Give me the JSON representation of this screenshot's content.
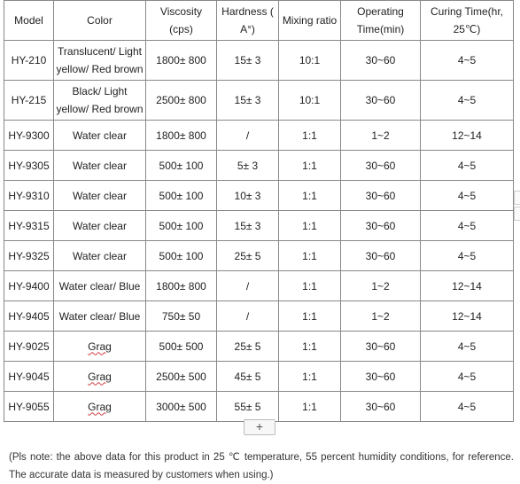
{
  "headers": {
    "model": "Model",
    "color": "Color",
    "viscosity": "Viscosity (cps)",
    "hardness": "Hardness ( A°)",
    "mixing": "Mixing ratio",
    "operating": "Operating Time(min)",
    "curing": "Curing Time(hr, 25℃)"
  },
  "rows": [
    {
      "model": "HY-210",
      "color": "Translucent/ Light yellow/ Red brown",
      "viscosity": "1800± 800",
      "hardness": "15± 3",
      "mixing": "10:1",
      "operating": "30~60",
      "curing": "4~5"
    },
    {
      "model": "HY-215",
      "color": "Black/ Light yellow/ Red brown",
      "viscosity": "2500± 800",
      "hardness": "15± 3",
      "mixing": "10:1",
      "operating": "30~60",
      "curing": "4~5"
    },
    {
      "model": "HY-9300",
      "color": "Water clear",
      "viscosity": "1800± 800",
      "hardness": "/",
      "mixing": "1:1",
      "operating": "1~2",
      "curing": "12~14"
    },
    {
      "model": "HY-9305",
      "color": "Water clear",
      "viscosity": "500± 100",
      "hardness": "5± 3",
      "mixing": "1:1",
      "operating": "30~60",
      "curing": "4~5"
    },
    {
      "model": "HY-9310",
      "color": "Water clear",
      "viscosity": "500± 100",
      "hardness": "10± 3",
      "mixing": "1:1",
      "operating": "30~60",
      "curing": "4~5"
    },
    {
      "model": "HY-9315",
      "color": "Water clear",
      "viscosity": "500± 100",
      "hardness": "15± 3",
      "mixing": "1:1",
      "operating": "30~60",
      "curing": "4~5"
    },
    {
      "model": "HY-9325",
      "color": "Water clear",
      "viscosity": "500± 100",
      "hardness": "25± 5",
      "mixing": "1:1",
      "operating": "30~60",
      "curing": "4~5"
    },
    {
      "model": "HY-9400",
      "color": "Water clear/ Blue",
      "viscosity": "1800± 800",
      "hardness": "/",
      "mixing": "1:1",
      "operating": "1~2",
      "curing": "12~14"
    },
    {
      "model": "HY-9405",
      "color": "Water clear/ Blue",
      "viscosity": "750± 50",
      "hardness": "/",
      "mixing": "1:1",
      "operating": "1~2",
      "curing": "12~14"
    },
    {
      "model": "HY-9025",
      "color": "Grag",
      "viscosity": "500± 500",
      "hardness": "25± 5",
      "mixing": "1:1",
      "operating": "30~60",
      "curing": "4~5"
    },
    {
      "model": "HY-9045",
      "color": "Grag",
      "viscosity": "2500± 500",
      "hardness": "45± 5",
      "mixing": "1:1",
      "operating": "30~60",
      "curing": "4~5"
    },
    {
      "model": "HY-9055",
      "color": "Grag",
      "viscosity": "3000± 500",
      "hardness": "55± 5",
      "mixing": "1:1",
      "operating": "30~60",
      "curing": "4~5"
    }
  ],
  "add_row_label": "+",
  "note": "(Pls note: the above data for this product in 25 ℃ temperature, 55 percent humidity conditions, for reference. The accurate data is measured by customers when using.)"
}
